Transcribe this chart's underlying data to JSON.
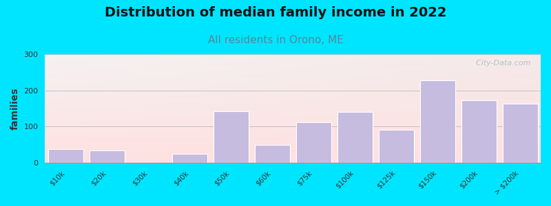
{
  "title": "Distribution of median family income in 2022",
  "subtitle": "All residents in Orono, ME",
  "ylabel": "families",
  "categories": [
    "$10k",
    "$20k",
    "$30k",
    "$40k",
    "$50k",
    "$60k",
    "$75k",
    "$100k",
    "$125k",
    "$150k",
    "$200k",
    "> $200k"
  ],
  "values": [
    38,
    33,
    0,
    25,
    143,
    50,
    112,
    140,
    90,
    228,
    172,
    163
  ],
  "bar_color": "#c5bce0",
  "bar_edge_color": "#ffffff",
  "background_outer": "#00e5ff",
  "bg_color_top": "#ddeedd",
  "bg_color_bottom": "#f8f8f4",
  "title_fontsize": 14,
  "subtitle_fontsize": 11,
  "subtitle_color": "#558899",
  "ylabel_color": "#333333",
  "ylim": [
    0,
    300
  ],
  "yticks": [
    0,
    100,
    200,
    300
  ],
  "watermark": "  City-Data.com",
  "watermark_color": "#aabbbb"
}
